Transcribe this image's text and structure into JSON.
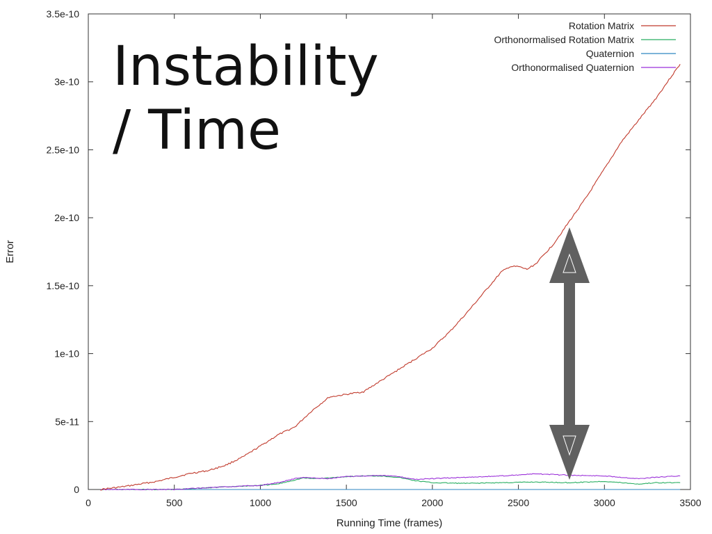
{
  "overlay": {
    "title_line1": "Instability",
    "title_line2": "/ Time"
  },
  "chart_data": {
    "type": "line",
    "xlabel": "Running Time (frames)",
    "ylabel": "Error",
    "xlim": [
      0,
      3500
    ],
    "ylim": [
      0,
      3.5e-10
    ],
    "x_ticks": [
      0,
      500,
      1000,
      1500,
      2000,
      2500,
      3000,
      3500
    ],
    "x_tick_labels": [
      "0",
      "500",
      "1000",
      "1500",
      "2000",
      "2500",
      "3000",
      "3500"
    ],
    "y_ticks": [
      0,
      5e-11,
      1e-10,
      1.5e-10,
      2e-10,
      2.5e-10,
      3e-10,
      3.5e-10
    ],
    "y_tick_labels": [
      "0",
      "5e-11",
      "1e-10",
      "1.5e-10",
      "2e-10",
      "2.5e-10",
      "3e-10",
      "3.5e-10"
    ],
    "grid": false,
    "legend": "top-right",
    "series": [
      {
        "name": "Rotation Matrix",
        "color": "#c0392b",
        "x": [
          70,
          200,
          300,
          400,
          500,
          600,
          700,
          800,
          900,
          1000,
          1100,
          1200,
          1300,
          1400,
          1500,
          1600,
          1700,
          1800,
          1900,
          2000,
          2100,
          2200,
          2300,
          2400,
          2450,
          2500,
          2550,
          2600,
          2700,
          2800,
          2900,
          3000,
          3100,
          3200,
          3300,
          3400,
          3440
        ],
        "y": [
          0,
          2e-12,
          4e-12,
          6e-12,
          9e-12,
          1.2e-11,
          1.4e-11,
          1.8e-11,
          2.4e-11,
          3.2e-11,
          4e-11,
          4.6e-11,
          5.8e-11,
          6.8e-11,
          7e-11,
          7.2e-11,
          8e-11,
          8.8e-11,
          9.6e-11,
          1.04e-10,
          1.16e-10,
          1.3e-10,
          1.45e-10,
          1.6e-10,
          1.64e-10,
          1.64e-10,
          1.62e-10,
          1.66e-10,
          1.8e-10,
          1.98e-10,
          2.16e-10,
          2.36e-10,
          2.56e-10,
          2.72e-10,
          2.88e-10,
          3.06e-10,
          3.13e-10
        ]
      },
      {
        "name": "Orthonormalised Rotation Matrix",
        "color": "#27ae60",
        "x": [
          70,
          500,
          650,
          800,
          1000,
          1100,
          1200,
          1250,
          1300,
          1400,
          1500,
          1600,
          1700,
          1800,
          1900,
          2000,
          2200,
          2400,
          2600,
          2800,
          3000,
          3200,
          3300,
          3440
        ],
        "y": [
          0,
          0,
          1e-12,
          2e-12,
          3e-12,
          4e-12,
          7e-12,
          8.5e-12,
          8e-12,
          8.5e-12,
          9.5e-12,
          1e-11,
          1e-11,
          9e-12,
          6.5e-12,
          5e-12,
          4.5e-12,
          5e-12,
          5.5e-12,
          5e-12,
          6e-12,
          4e-12,
          5e-12,
          5e-12
        ]
      },
      {
        "name": "Quaternion",
        "color": "#2e86c1",
        "x": [
          70,
          3440
        ],
        "y": [
          0,
          0
        ]
      },
      {
        "name": "Orthonormalised Quaternion",
        "color": "#9b30d9",
        "x": [
          70,
          500,
          650,
          800,
          1000,
          1100,
          1200,
          1250,
          1300,
          1400,
          1500,
          1600,
          1700,
          1800,
          1900,
          2000,
          2200,
          2400,
          2600,
          2800,
          3000,
          3200,
          3300,
          3440
        ],
        "y": [
          0,
          0,
          1e-12,
          2e-12,
          3e-12,
          5e-12,
          8e-12,
          9e-12,
          8.5e-12,
          8e-12,
          9.5e-12,
          1e-11,
          1.05e-11,
          9.5e-12,
          7.5e-12,
          8e-12,
          9e-12,
          1e-11,
          1.15e-11,
          1.05e-11,
          1e-11,
          8e-12,
          9e-12,
          1e-11
        ]
      }
    ]
  }
}
